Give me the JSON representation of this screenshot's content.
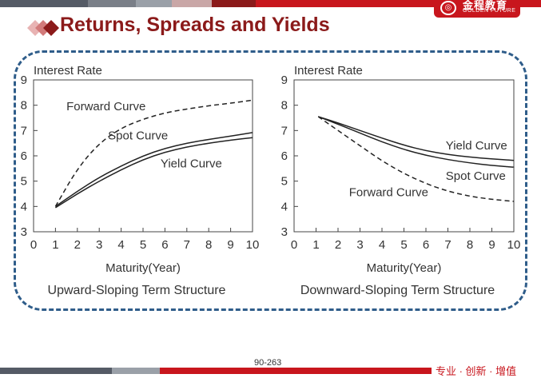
{
  "slide": {
    "title": "Returns, Spreads and Yields",
    "page_number": "90-263",
    "slogan": "专业 · 创新 · 增值",
    "logo": {
      "chinese": "金程教育",
      "english": "GOLDEN FUTURE"
    },
    "colors": {
      "brand_red": "#c8161d",
      "title_red": "#8b1a1a",
      "frame_blue": "#2f5d8a"
    }
  },
  "chart_data": [
    {
      "type": "line",
      "caption": "Upward-Sloping Term Structure",
      "ylabel": "Interest Rate",
      "xlabel": "Maturity(Year)",
      "xlim": [
        0,
        10
      ],
      "ylim": [
        3,
        9
      ],
      "xticks": [
        "0",
        "1",
        "2",
        "3",
        "4",
        "5",
        "6",
        "7",
        "8",
        "9",
        "10"
      ],
      "yticks": [
        "3",
        "4",
        "5",
        "6",
        "7",
        "8",
        "9"
      ],
      "series": [
        {
          "name": "Forward Curve",
          "style": "dashed",
          "x": [
            1,
            2,
            3,
            4,
            5,
            6,
            7,
            8,
            9,
            10
          ],
          "y": [
            4.0,
            5.5,
            6.5,
            7.1,
            7.45,
            7.7,
            7.85,
            7.98,
            8.08,
            8.2
          ]
        },
        {
          "name": "Spot Curve",
          "style": "solid",
          "x": [
            1,
            2,
            3,
            4,
            5,
            6,
            7,
            8,
            9,
            10
          ],
          "y": [
            4.0,
            4.6,
            5.15,
            5.6,
            6.0,
            6.3,
            6.5,
            6.65,
            6.78,
            6.92
          ]
        },
        {
          "name": "Yield Curve",
          "style": "solid",
          "x": [
            1,
            2,
            3,
            4,
            5,
            6,
            7,
            8,
            9,
            10
          ],
          "y": [
            3.95,
            4.5,
            5.0,
            5.45,
            5.85,
            6.15,
            6.35,
            6.5,
            6.62,
            6.72
          ]
        }
      ]
    },
    {
      "type": "line",
      "caption": "Downward-Sloping Term Structure",
      "ylabel": "Interest Rate",
      "xlabel": "Maturity(Year)",
      "xlim": [
        0,
        10
      ],
      "ylim": [
        3,
        9
      ],
      "xticks": [
        "0",
        "1",
        "2",
        "3",
        "4",
        "5",
        "6",
        "7",
        "8",
        "9",
        "10"
      ],
      "yticks": [
        "3",
        "4",
        "5",
        "6",
        "7",
        "8",
        "9"
      ],
      "series": [
        {
          "name": "Yield Curve",
          "style": "solid",
          "x": [
            1.1,
            2,
            3,
            4,
            5,
            6,
            7,
            8,
            9,
            10
          ],
          "y": [
            7.55,
            7.3,
            7.0,
            6.7,
            6.42,
            6.2,
            6.05,
            5.95,
            5.88,
            5.82
          ]
        },
        {
          "name": "Spot Curve",
          "style": "solid",
          "x": [
            1.1,
            2,
            3,
            4,
            5,
            6,
            7,
            8,
            9,
            10
          ],
          "y": [
            7.55,
            7.25,
            6.9,
            6.55,
            6.25,
            6.02,
            5.85,
            5.72,
            5.62,
            5.55
          ]
        },
        {
          "name": "Forward Curve",
          "style": "dashed",
          "x": [
            1.1,
            2,
            3,
            4,
            5,
            6,
            7,
            8,
            9,
            10
          ],
          "y": [
            7.55,
            7.0,
            6.4,
            5.8,
            5.3,
            4.9,
            4.6,
            4.4,
            4.28,
            4.2
          ]
        }
      ]
    }
  ]
}
